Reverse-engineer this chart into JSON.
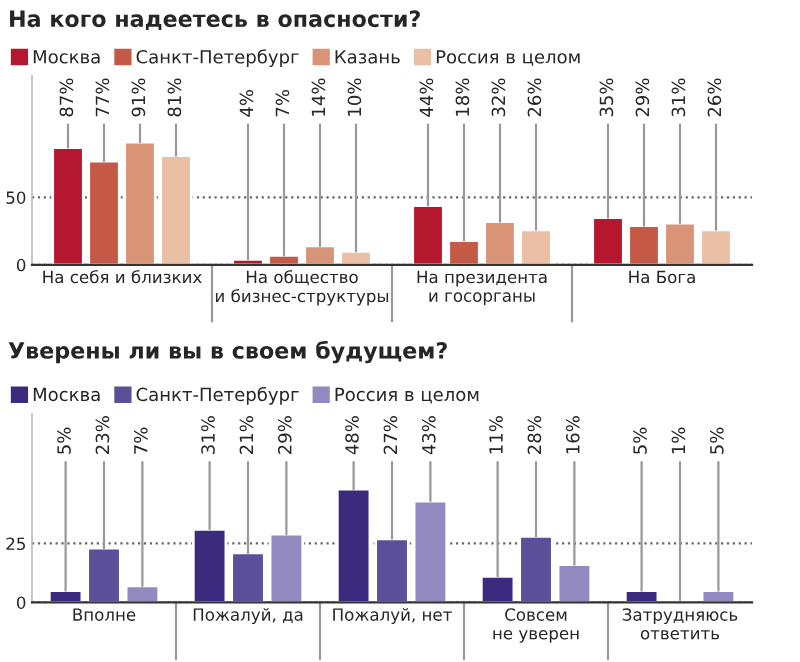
{
  "chart_data": [
    {
      "type": "bar",
      "title": "На кого надеетесь в опасности?",
      "categories": [
        "На себя и близких",
        "На общество\nи бизнес-структуры",
        "На президента\nи госорганы",
        "На Бога"
      ],
      "series": [
        {
          "name": "Москва",
          "color": "#b5172f",
          "values": [
            87,
            4,
            44,
            35
          ],
          "value_labels": [
            "87%",
            "4%",
            "44%",
            "35%"
          ]
        },
        {
          "name": "Санкт-Петербург",
          "color": "#c45a45",
          "values": [
            77,
            7,
            18,
            29
          ],
          "value_labels": [
            "77%",
            "7%",
            "18%",
            "29%"
          ]
        },
        {
          "name": "Казань",
          "color": "#d99478",
          "values": [
            91,
            14,
            32,
            31
          ],
          "value_labels": [
            "91%",
            "14%",
            "32%",
            "31%"
          ]
        },
        {
          "name": "Россия в целом",
          "color": "#ebbfa3",
          "values": [
            81,
            10,
            26,
            26
          ],
          "value_labels": [
            "81%",
            "10%",
            "26%",
            "26%"
          ]
        }
      ],
      "ylim": [
        0,
        140
      ],
      "yticks": [
        0,
        50
      ],
      "grid": "y",
      "legend": "top left"
    },
    {
      "type": "bar",
      "title": "Уверены ли вы в своем будущем?",
      "categories": [
        "Вполне",
        "Пожалуй, да",
        "Пожалуй, нет",
        "Совсем\nне уверен",
        "Затрудняюсь\nответить"
      ],
      "series": [
        {
          "name": "Москва",
          "color": "#3b2a7e",
          "values": [
            5,
            31,
            48,
            11,
            5
          ],
          "value_labels": [
            "5%",
            "31%",
            "48%",
            "11%",
            "5%"
          ]
        },
        {
          "name": "Санкт-Петербург",
          "color": "#5c4f99",
          "values": [
            23,
            21,
            27,
            28,
            1
          ],
          "value_labels": [
            "23%",
            "21%",
            "27%",
            "28%",
            "1%"
          ]
        },
        {
          "name": "Россия в целом",
          "color": "#9189c0",
          "values": [
            7,
            29,
            43,
            16,
            5
          ],
          "value_labels": [
            "7%",
            "29%",
            "43%",
            "16%",
            "5%"
          ]
        }
      ],
      "ylim": [
        0,
        80
      ],
      "yticks": [
        0,
        25
      ],
      "grid": "y",
      "legend": "top left"
    }
  ]
}
